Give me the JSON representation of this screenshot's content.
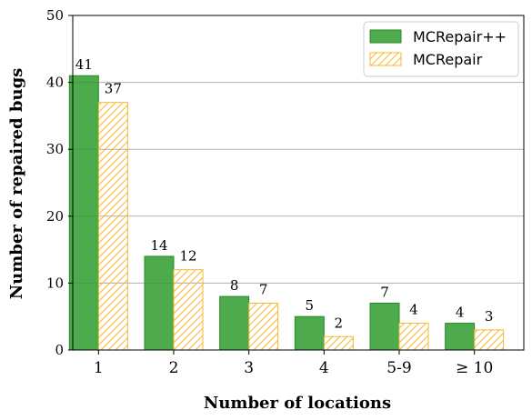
{
  "chart_data": {
    "type": "bar",
    "title": "",
    "xlabel": "Number of locations",
    "ylabel": "Number of repaired bugs",
    "categories": [
      "1",
      "2",
      "3",
      "4",
      "5-9",
      "≥ 10"
    ],
    "series": [
      {
        "name": "MCRepair++",
        "values": [
          41,
          14,
          8,
          5,
          7,
          4
        ],
        "color": "#2e9b2e",
        "style": "solid"
      },
      {
        "name": "MCRepair",
        "values": [
          37,
          12,
          7,
          2,
          4,
          3
        ],
        "color": "#f5b82e",
        "style": "hatched"
      }
    ],
    "ylim": [
      0,
      50
    ],
    "yticks": [
      0,
      10,
      20,
      30,
      40,
      50
    ],
    "grid": "horizontal",
    "legend": "top-right",
    "data_labels": true
  }
}
